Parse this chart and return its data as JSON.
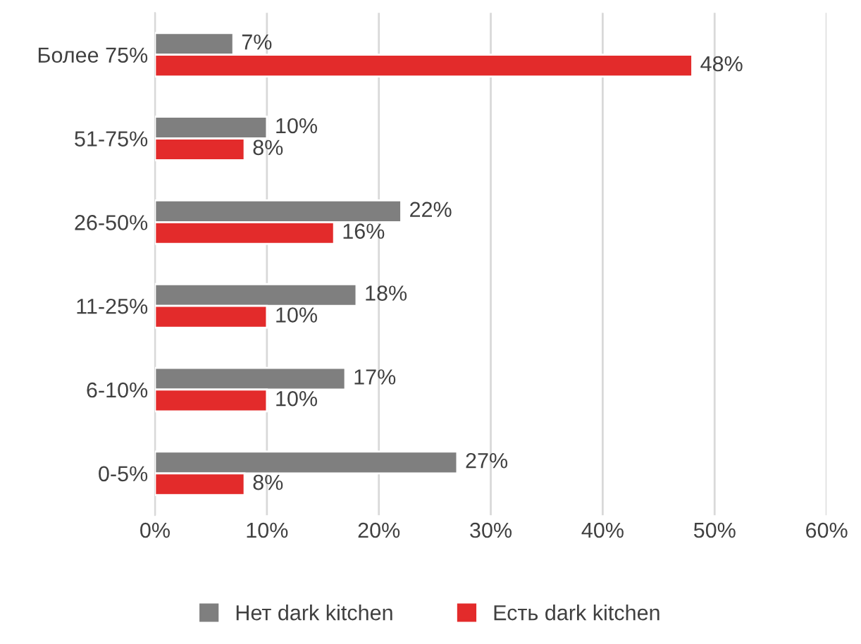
{
  "chart_data": {
    "type": "bar",
    "orientation": "horizontal",
    "categories": [
      "Более 75%",
      "51-75%",
      "26-50%",
      "11-25%",
      "6-10%",
      "0-5%"
    ],
    "series": [
      {
        "name": "Нет dark kitchen",
        "color": "#7f7f7f",
        "values": [
          7,
          10,
          22,
          18,
          17,
          27
        ],
        "value_labels": [
          "7%",
          "10%",
          "22%",
          "18%",
          "17%",
          "27%"
        ]
      },
      {
        "name": "Есть dark kitchen",
        "color": "#e32b2b",
        "values": [
          48,
          8,
          16,
          10,
          10,
          8
        ],
        "value_labels": [
          "48%",
          "8%",
          "16%",
          "10%",
          "10%",
          "8%"
        ]
      }
    ],
    "xlim": [
      0,
      60
    ],
    "xticks": [
      {
        "value": 0,
        "label": "0%"
      },
      {
        "value": 10,
        "label": "10%"
      },
      {
        "value": 20,
        "label": "20%"
      },
      {
        "value": 30,
        "label": "30%"
      },
      {
        "value": 40,
        "label": "40%"
      },
      {
        "value": 50,
        "label": "50%"
      },
      {
        "value": 60,
        "label": "60%"
      }
    ],
    "grid": "x",
    "legend": "bottom"
  }
}
